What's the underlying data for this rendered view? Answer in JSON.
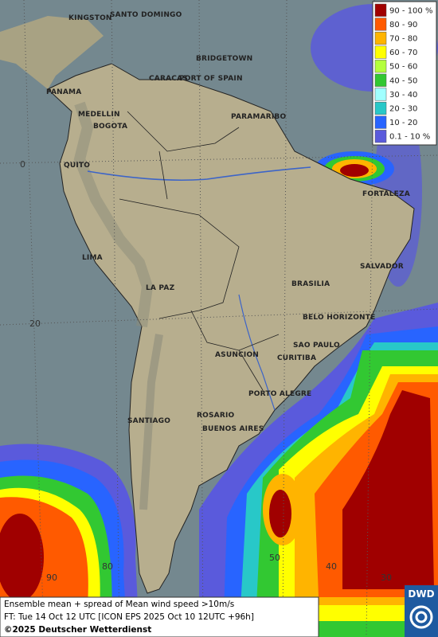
{
  "cities": [
    "KINGSTON",
    "SANTO DOMINGO",
    "BRIDGETOWN",
    "CARACAS",
    "PORT OF SPAIN",
    "PANAMA",
    "MEDELLIN",
    "BOGOTA",
    "PARAMARIBO",
    "QUITO",
    "FORTALEZA",
    "LIMA",
    "SALVADOR",
    "LA PAZ",
    "BRASILIA",
    "BELO HORIZONTE",
    "SAO PAULO",
    "ASUNCION",
    "CURITIBA",
    "PORTO ALEGRE",
    "ROSARIO",
    "SANTIAGO",
    "BUENOS AIRES"
  ],
  "grid_labels": {
    "latitude": [
      0,
      20
    ],
    "longitude": [
      90,
      80,
      50,
      40,
      30
    ]
  },
  "legend": [
    {
      "label": "90 - 100 %",
      "color": "#a00000"
    },
    {
      "label": "80 - 90",
      "color": "#ff5a00"
    },
    {
      "label": "70 - 80",
      "color": "#ffb400"
    },
    {
      "label": "60 - 70",
      "color": "#ffff00"
    },
    {
      "label": "50 - 60",
      "color": "#b4ff3c"
    },
    {
      "label": "40 - 50",
      "color": "#32c832"
    },
    {
      "label": "30 - 40",
      "color": "#a0ffff"
    },
    {
      "label": "20 - 30",
      "color": "#28c8c8"
    },
    {
      "label": "10 - 20",
      "color": "#2864ff"
    },
    {
      "label": "0.1 - 10 %",
      "color": "#5a5adc"
    }
  ],
  "footer": {
    "line1": "Ensemble mean + spread of Mean wind speed >10m/s",
    "line2": "FT: Tue 14 Oct 12 UTC [ICON EPS 2025 Oct 10 12UTC +96h]",
    "copyright": "©2025 Deutscher Wetterdienst"
  },
  "logo": "DWD"
}
